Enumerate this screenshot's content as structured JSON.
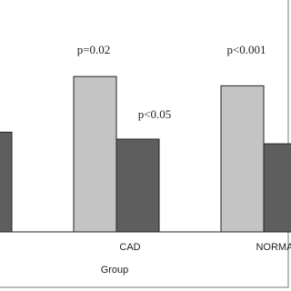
{
  "chart_data": {
    "type": "bar",
    "categories": [
      null,
      "CAD",
      "NORMAL"
    ],
    "x_label": "Group",
    "series": [
      {
        "color": "#c4c4c4",
        "values": [
          null,
          67,
          63
        ]
      },
      {
        "color": "#5e5e5e",
        "values": [
          43,
          40,
          38
        ]
      }
    ],
    "ylim": [
      0,
      100
    ],
    "annotations": [
      "p=0.02",
      "p<0.05",
      "p<0.001"
    ]
  }
}
